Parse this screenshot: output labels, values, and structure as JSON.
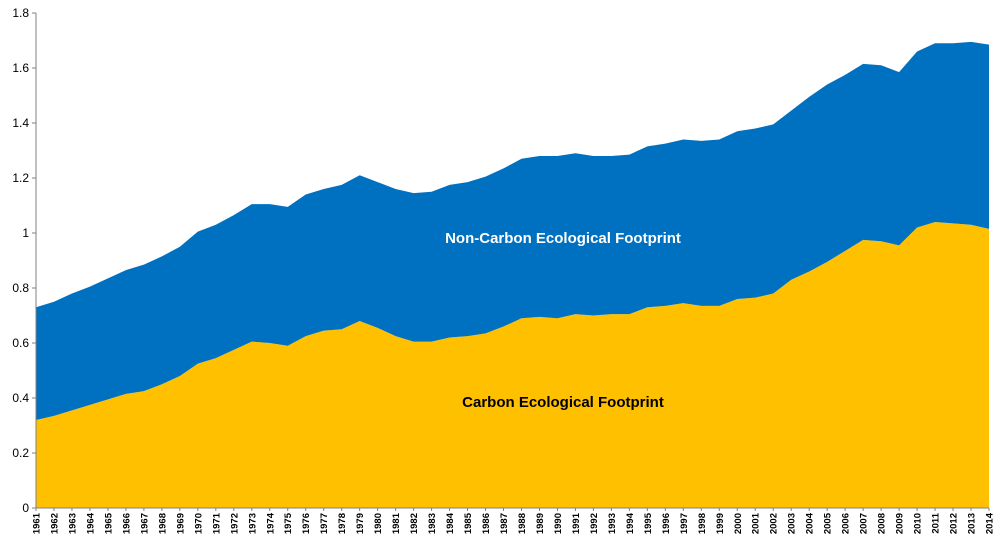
{
  "chart_data": {
    "type": "area",
    "stacked": true,
    "title": "",
    "xlabel": "",
    "ylabel": "",
    "ylim": [
      0,
      1.8
    ],
    "yticks": [
      "0",
      "0.2",
      "0.4",
      "0.6",
      "0.8",
      "1",
      "1.2",
      "1.4",
      "1.6",
      "1.8"
    ],
    "grid": false,
    "legend": "none",
    "categories": [
      "1961",
      "1962",
      "1963",
      "1964",
      "1965",
      "1966",
      "1967",
      "1968",
      "1969",
      "1970",
      "1971",
      "1972",
      "1973",
      "1974",
      "1975",
      "1976",
      "1977",
      "1978",
      "1979",
      "1980",
      "1981",
      "1982",
      "1983",
      "1984",
      "1985",
      "1986",
      "1987",
      "1988",
      "1989",
      "1990",
      "1991",
      "1992",
      "1993",
      "1994",
      "1995",
      "1996",
      "1997",
      "1998",
      "1999",
      "2000",
      "2001",
      "2002",
      "2003",
      "2004",
      "2005",
      "2006",
      "2007",
      "2008",
      "2009",
      "2010",
      "2011",
      "2012",
      "2013",
      "2014"
    ],
    "series": [
      {
        "name": "Carbon Ecological Footprint",
        "color": "#FFC000",
        "values": [
          0.32,
          0.335,
          0.355,
          0.375,
          0.395,
          0.415,
          0.425,
          0.45,
          0.48,
          0.525,
          0.545,
          0.575,
          0.605,
          0.6,
          0.59,
          0.625,
          0.645,
          0.65,
          0.68,
          0.655,
          0.625,
          0.605,
          0.605,
          0.62,
          0.625,
          0.635,
          0.66,
          0.69,
          0.695,
          0.69,
          0.705,
          0.7,
          0.705,
          0.705,
          0.73,
          0.735,
          0.745,
          0.735,
          0.735,
          0.76,
          0.765,
          0.78,
          0.83,
          0.86,
          0.895,
          0.935,
          0.975,
          0.97,
          0.955,
          1.02,
          1.04,
          1.035,
          1.03,
          1.015
        ]
      },
      {
        "name": "Non-Carbon Ecological Footprint",
        "color": "#0070C0",
        "values": [
          0.41,
          0.415,
          0.425,
          0.43,
          0.44,
          0.45,
          0.46,
          0.465,
          0.47,
          0.48,
          0.485,
          0.49,
          0.5,
          0.505,
          0.505,
          0.515,
          0.515,
          0.525,
          0.53,
          0.53,
          0.535,
          0.54,
          0.545,
          0.555,
          0.56,
          0.57,
          0.575,
          0.58,
          0.585,
          0.59,
          0.585,
          0.58,
          0.575,
          0.58,
          0.585,
          0.59,
          0.595,
          0.6,
          0.605,
          0.61,
          0.615,
          0.615,
          0.615,
          0.635,
          0.645,
          0.64,
          0.64,
          0.64,
          0.63,
          0.64,
          0.65,
          0.655,
          0.665,
          0.67
        ]
      }
    ]
  }
}
